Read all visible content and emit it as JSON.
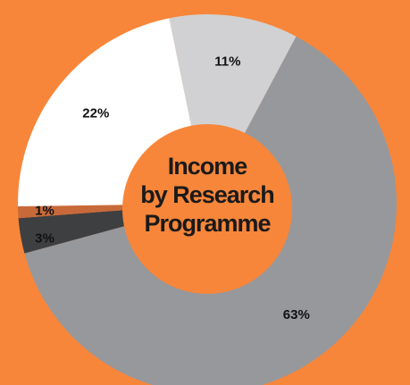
{
  "chart_data": {
    "type": "donut",
    "title": [
      "Income",
      "by Research",
      "Programme"
    ],
    "categories": [
      null,
      null,
      null,
      null,
      null
    ],
    "values": [
      11,
      63,
      3,
      1,
      22
    ],
    "value_labels": [
      "11%",
      "63%",
      "3%",
      "1%",
      "22%"
    ],
    "colors": [
      "#d1d1d3",
      "#97989c",
      "#3e3f41",
      "#c8693a",
      "#ffffff"
    ],
    "background": "#f7863a"
  }
}
